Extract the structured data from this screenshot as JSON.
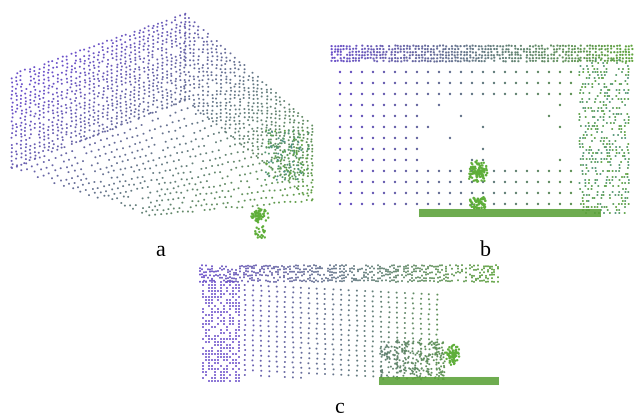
{
  "figure": {
    "panels": [
      {
        "id": "a",
        "label": "a"
      },
      {
        "id": "b",
        "label": "b"
      },
      {
        "id": "c",
        "label": "c"
      }
    ],
    "colors": {
      "point_purple": "#6a4fc9",
      "point_teal": "#4d8f8a",
      "point_green": "#5ea33c",
      "plant_green": "#5fae3a"
    }
  }
}
